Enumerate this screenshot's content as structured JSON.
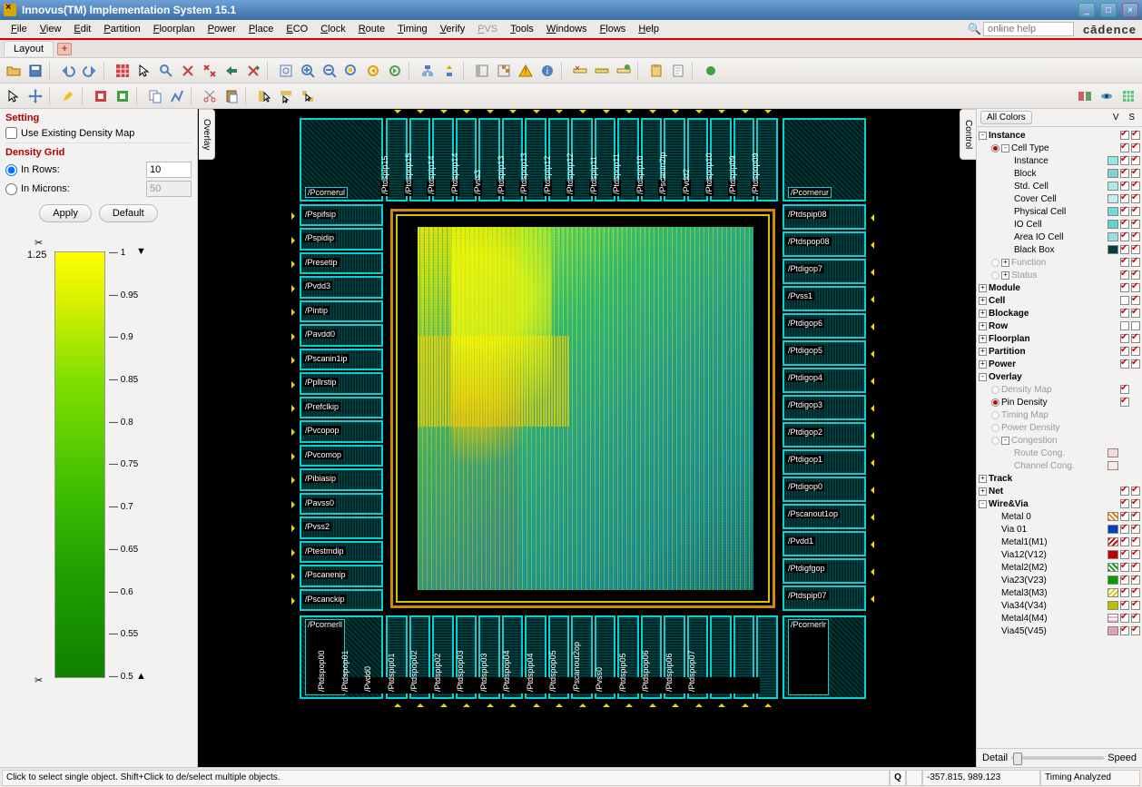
{
  "window": {
    "title": "Innovus(TM) Implementation System 15.1"
  },
  "menubar": {
    "items": [
      "File",
      "View",
      "Edit",
      "Partition",
      "Floorplan",
      "Power",
      "Place",
      "ECO",
      "Clock",
      "Route",
      "Timing",
      "Verify",
      "PVS",
      "Tools",
      "Windows",
      "Flows",
      "Help"
    ],
    "disabled_index": 12,
    "search_placeholder": "online help",
    "brand": "cādence"
  },
  "tabs": {
    "active": "Layout"
  },
  "toolbar1_icons": [
    "open",
    "save",
    "sep",
    "undo",
    "redo",
    "sep",
    "grid-red",
    "cursor",
    "zoom-cursor",
    "x-cursor",
    "x2-cursor",
    "arrow-cursor",
    "x-arrow",
    "sep",
    "zoom-fit",
    "zoom-in",
    "zoom-out",
    "zoom-sel",
    "zoom-prev",
    "zoom-next",
    "sep",
    "hier-down",
    "hier-up",
    "sep",
    "panel-l",
    "panel-r",
    "warn",
    "info",
    "sep",
    "ruler-x",
    "ruler",
    "ruler-cfg",
    "sep",
    "clipboard",
    "note",
    "sep",
    "record"
  ],
  "toolbar2_icons": [
    "select",
    "move",
    "sep",
    "highlight",
    "sep",
    "place-red",
    "place-green",
    "sep",
    "copy",
    "wire",
    "sep",
    "cut",
    "paste",
    "sep",
    "snap1",
    "snap2",
    "snap3"
  ],
  "toolbar2_right": [
    "view-a",
    "view-b",
    "view-c"
  ],
  "setting": {
    "title": "Setting",
    "use_existing": "Use Existing Density Map",
    "grid_title": "Density Grid",
    "rows_label": "In Rows:",
    "rows_value": "10",
    "microns_label": "In Microns:",
    "microns_value": "50",
    "apply": "Apply",
    "default": "Default"
  },
  "density_scale": {
    "max_label": "1.25",
    "top_arrow": "▼",
    "ticks": [
      "1",
      "0.95",
      "0.9",
      "0.85",
      "0.8",
      "0.75",
      "0.7",
      "0.65",
      "0.6",
      "0.55",
      "0.5"
    ],
    "bottom_label": "0.5"
  },
  "overlay_tab": "Overlay",
  "control_tab": "Control",
  "chip": {
    "corners": {
      "ul": "/Pcornerul",
      "ur": "/Pcornerur",
      "ll": "/Pcornerll",
      "lr": "/Pcornerlr"
    },
    "top_pads": [
      "/Ptdspip15",
      "/Ptdspop15",
      "/Ptdspip14",
      "/Ptdspop14",
      "/Pvss3",
      "/Ptdspip13",
      "/Ptdspop13",
      "/Ptdspip12",
      "/Ptdspop12",
      "/Ptdspip11",
      "/Ptdspop11",
      "/Ptdspip10",
      "/Pscanin2ip",
      "/Pvdd2",
      "/Ptdspop10",
      "/Ptdspip09",
      "/Ptdspop09"
    ],
    "left_pads": [
      "/Pspifsip",
      "/Pspidip",
      "/Presetip",
      "/Pvdd3",
      "/Pintip",
      "/Pavdd0",
      "/Pscanin1ip",
      "/Ppllrstip",
      "/Prefclkip",
      "/Pvcopop",
      "/Pvcomop",
      "/Pibiasip",
      "/Pavss0",
      "/Pvss2",
      "/Ptestmdip",
      "/Pscanenip",
      "/Pscanckip"
    ],
    "right_pads": [
      "/Ptdspip08",
      "/Ptdspop08",
      "/Ptdigop7",
      "/Pvss1",
      "/Ptdigop6",
      "/Ptdigop5",
      "/Ptdigop4",
      "/Ptdigop3",
      "/Ptdigop2",
      "/Ptdigop1",
      "/Ptdigop0",
      "/Pscanout1op",
      "/Pvdd1",
      "/Ptdigfgop",
      "/Ptdspip07"
    ],
    "bottom_pads": [
      "/Ptdspop00",
      "/Ptdspop01",
      "/Pvdd0",
      "/Ptdspip01",
      "/Ptdspop02",
      "/Ptdspip02",
      "/Ptdspop03",
      "/Ptdspip03",
      "/Ptdspop04",
      "/Ptdspip04",
      "/Ptdspop05",
      "/Pscanout2op",
      "/Pvss0",
      "/Ptdspip05",
      "/Ptdspop06",
      "/Ptdspip06",
      "/Ptdspop07"
    ]
  },
  "rightpanel": {
    "all_colors": "All Colors",
    "vs": "V  S",
    "tree": [
      {
        "exp": "-",
        "lbl": "Instance",
        "bold": true,
        "s": null,
        "v": true,
        "sel": true,
        "indent": 0
      },
      {
        "rad": "on",
        "exp": "-",
        "lbl": "Cell Type",
        "s": null,
        "v": true,
        "sel": true,
        "indent": 1
      },
      {
        "lbl": "Instance",
        "s": "#90e8e8",
        "v": true,
        "sel": true,
        "indent": 2
      },
      {
        "lbl": "Block",
        "s": "#80d0d0",
        "v": true,
        "sel": true,
        "indent": 2
      },
      {
        "lbl": "Std. Cell",
        "s": "#b0e8e8",
        "v": true,
        "sel": true,
        "indent": 2
      },
      {
        "lbl": "Cover Cell",
        "s": "#c0f0f0",
        "v": true,
        "sel": true,
        "indent": 2
      },
      {
        "lbl": "Physical Cell",
        "s": "#70d8d8",
        "v": true,
        "sel": true,
        "indent": 2
      },
      {
        "lbl": "IO Cell",
        "s": "#60d0d0",
        "v": true,
        "sel": true,
        "indent": 2
      },
      {
        "lbl": "Area IO Cell",
        "s": "#98e0e0",
        "v": true,
        "sel": true,
        "indent": 2
      },
      {
        "lbl": "Black Box",
        "s": "#004040",
        "v": true,
        "sel": true,
        "indent": 2
      },
      {
        "rad": "off-dim",
        "exp": "+",
        "lbl": "Function",
        "dim": true,
        "v": true,
        "sel": true,
        "indent": 1
      },
      {
        "rad": "off-dim",
        "exp": "+",
        "lbl": "Status",
        "dim": true,
        "v": true,
        "sel": true,
        "indent": 1
      },
      {
        "exp": "+",
        "lbl": "Module",
        "bold": true,
        "v": true,
        "sel": true,
        "indent": 0
      },
      {
        "exp": "+",
        "lbl": "Cell",
        "bold": true,
        "v": false,
        "sel": true,
        "indent": 0
      },
      {
        "exp": "+",
        "lbl": "Blockage",
        "bold": true,
        "v": true,
        "sel": true,
        "indent": 0
      },
      {
        "exp": "+",
        "lbl": "Row",
        "bold": true,
        "v": false,
        "sel": false,
        "indent": 0
      },
      {
        "exp": "+",
        "lbl": "Floorplan",
        "bold": true,
        "v": true,
        "sel": true,
        "indent": 0
      },
      {
        "exp": "+",
        "lbl": "Partition",
        "bold": true,
        "v": true,
        "sel": true,
        "indent": 0
      },
      {
        "exp": "+",
        "lbl": "Power",
        "bold": true,
        "v": true,
        "sel": true,
        "indent": 0
      },
      {
        "exp": "-",
        "lbl": "Overlay",
        "bold": true,
        "indent": 0
      },
      {
        "rad": "off-dim",
        "lbl": "Density Map",
        "dim": true,
        "v": true,
        "indent": 1
      },
      {
        "rad": "on",
        "lbl": "Pin Density",
        "v": true,
        "indent": 1
      },
      {
        "rad": "off-dim",
        "lbl": "Timing Map",
        "dim": true,
        "indent": 1
      },
      {
        "rad": "off-dim",
        "lbl": "Power Density",
        "dim": true,
        "indent": 1
      },
      {
        "rad": "off-dim",
        "exp": "-",
        "lbl": "Congestion",
        "dim": true,
        "indent": 1
      },
      {
        "lbl": "Route Cong.",
        "dim": true,
        "s": "#f8d8d8",
        "indent": 2
      },
      {
        "lbl": "Channel Cong.",
        "dim": true,
        "s": "#f8e8e8",
        "indent": 2
      },
      {
        "exp": "+",
        "lbl": "Track",
        "bold": true,
        "indent": 0
      },
      {
        "exp": "+",
        "lbl": "Net",
        "bold": true,
        "v": true,
        "sel": true,
        "indent": 0
      },
      {
        "exp": "-",
        "lbl": "Wire&Via",
        "bold": true,
        "v": true,
        "sel": true,
        "indent": 0
      },
      {
        "lbl": "Metal 0",
        "s": "hatch-orange",
        "v": true,
        "sel": true,
        "indent": 1
      },
      {
        "lbl": "Via 01",
        "s": "#0040c0",
        "v": true,
        "sel": true,
        "indent": 1
      },
      {
        "lbl": "Metal1(M1)",
        "s": "hatch-red",
        "v": true,
        "sel": true,
        "indent": 1
      },
      {
        "lbl": "Via12(V12)",
        "s": "#c00000",
        "v": true,
        "sel": true,
        "indent": 1
      },
      {
        "lbl": "Metal2(M2)",
        "s": "hatch-green",
        "v": true,
        "sel": true,
        "indent": 1
      },
      {
        "lbl": "Via23(V23)",
        "s": "#00a000",
        "v": true,
        "sel": true,
        "indent": 1
      },
      {
        "lbl": "Metal3(M3)",
        "s": "hatch-yellow",
        "v": true,
        "sel": true,
        "indent": 1
      },
      {
        "lbl": "Via34(V34)",
        "s": "#c0c000",
        "v": true,
        "sel": true,
        "indent": 1
      },
      {
        "lbl": "Metal4(M4)",
        "s": "hatch-pink",
        "v": true,
        "sel": true,
        "indent": 1
      },
      {
        "lbl": "Via45(V45)",
        "s": "#e0a0c0",
        "v": true,
        "sel": true,
        "indent": 1
      }
    ],
    "footer": {
      "detail": "Detail",
      "speed": "Speed"
    }
  },
  "statusbar": {
    "hint": "Click to select single object. Shift+Click to de/select multiple objects.",
    "q": "Q",
    "coords": "-357.815, 989.123",
    "status": "Timing Analyzed"
  },
  "swatch_styles": {
    "hatch-orange": "repeating-linear-gradient(45deg,#e08000 0 2px,#fff 2px 4px)",
    "hatch-red": "repeating-linear-gradient(135deg,#d00000 0 2px,#fff 2px 4px)",
    "hatch-green": "repeating-linear-gradient(45deg,#00a000 0 2px,#fff 2px 4px)",
    "hatch-yellow": "repeating-linear-gradient(135deg,#d0d000 0 2px,#fff 2px 4px)",
    "hatch-pink": "repeating-linear-gradient(0deg,#f0b0d0 0 2px,#fff 2px 4px)"
  }
}
